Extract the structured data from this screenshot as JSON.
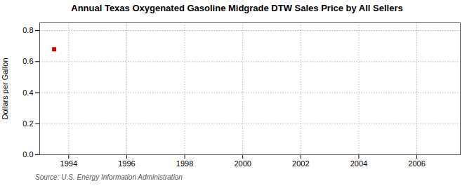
{
  "chart_data": {
    "type": "scatter",
    "title": "Annual Texas Oxygenated Gasoline Midgrade DTW Sales Price by All Sellers",
    "ylabel": "Dollars per Gallon",
    "source": "Source: U.S. Energy Information Administration",
    "x": [
      1993.5
    ],
    "values": [
      0.679
    ],
    "color": "#cc0000",
    "marker": "square",
    "xlim": [
      1993,
      2007.5
    ],
    "ylim": [
      0.0,
      0.85
    ],
    "xticks": [
      1994,
      1996,
      1998,
      2000,
      2002,
      2004,
      2006
    ],
    "yticks": [
      {
        "value": 0.0,
        "label": "0.0"
      },
      0.2,
      0.4,
      0.6,
      0.8
    ],
    "grid": true
  }
}
